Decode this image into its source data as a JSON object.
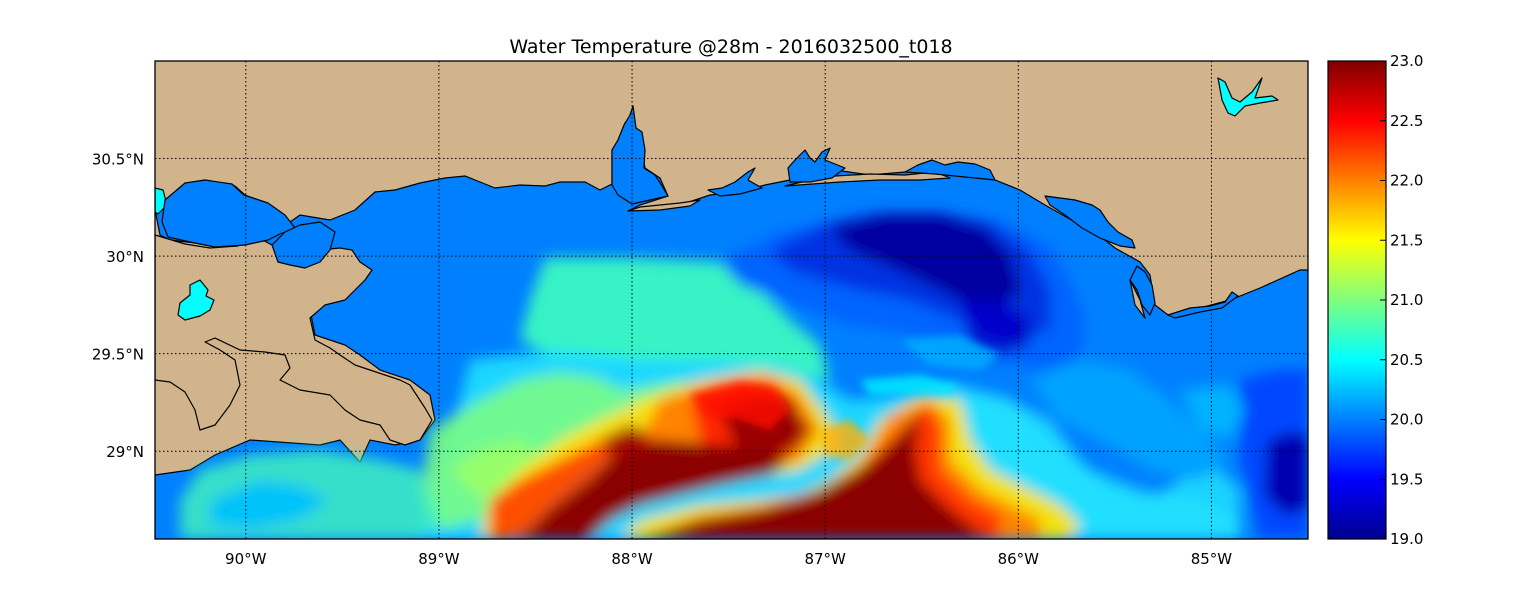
{
  "title": "Water Temperature @28m - 2016032500_t018",
  "colors": {
    "land": "#D2B48C",
    "water_base": "#0080FF",
    "lake": "#00FFFF",
    "grid": "#000000"
  },
  "map": {
    "lon_range": [
      -90.47,
      -84.5
    ],
    "lat_range": [
      28.55,
      31.0
    ],
    "lon_ticks": [
      {
        "value": -90,
        "label": "90°W"
      },
      {
        "value": -89,
        "label": "89°W"
      },
      {
        "value": -88,
        "label": "88°W"
      },
      {
        "value": -87,
        "label": "87°W"
      },
      {
        "value": -86,
        "label": "86°W"
      },
      {
        "value": -85,
        "label": "85°W"
      }
    ],
    "lat_ticks": [
      {
        "value": 30.5,
        "label": "30.5°N"
      },
      {
        "value": 30.0,
        "label": "30°N"
      },
      {
        "value": 29.5,
        "label": "29.5°N"
      },
      {
        "value": 29.0,
        "label": "29°N"
      }
    ],
    "grid": true,
    "grid_style": "dotted"
  },
  "colorbar": {
    "colormap": "jet",
    "min": 19.0,
    "max": 23.0,
    "placement": "right",
    "ticks": [
      "19.0",
      "19.5",
      "20.0",
      "20.5",
      "21.0",
      "21.5",
      "22.0",
      "22.5",
      "23.0"
    ]
  },
  "temperature_features": [
    {
      "name": "cold core",
      "lon": -86.3,
      "lat": 29.95,
      "temp": 19.0
    },
    {
      "name": "cold patch east",
      "lon": -84.6,
      "lat": 28.85,
      "temp": 19.2
    },
    {
      "name": "warm tongue west",
      "lon": -88.0,
      "lat": 28.8,
      "temp": 23.0
    },
    {
      "name": "warm tongue center",
      "lon": -87.0,
      "lat": 28.7,
      "temp": 23.0
    },
    {
      "name": "warm plume north",
      "lon": -87.5,
      "lat": 29.25,
      "temp": 22.5
    },
    {
      "name": "shelf band",
      "lon": -88.2,
      "lat": 29.6,
      "temp": 20.9
    }
  ]
}
